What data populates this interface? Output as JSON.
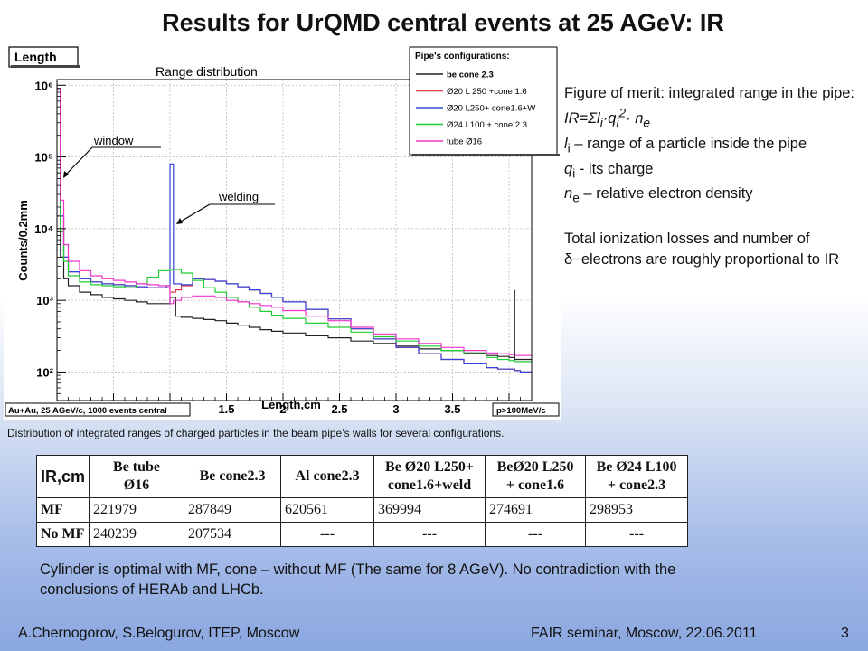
{
  "slide": {
    "title": "Results for UrQMD central events at 25 AGeV: IR",
    "caption": "Distribution of integrated ranges of charged particles in the beam pipe’s walls for several configurations.",
    "conclusion": "Cylinder is optimal with MF, cone – without MF (The same for 8 AGeV). No contradiction with the conclusions of HERAb and LHCb.",
    "footer_left": "A.Chernogorov, S.Belogurov, ITEP, Moscow",
    "footer_mid": "FAIR seminar, Moscow, 22.06.2011",
    "page_number": "3"
  },
  "merit": {
    "line1": "Figure of merit: integrated range in the pipe: ",
    "formula": {
      "a": "IR=Σl",
      "a_sub": "i",
      "b": "·q",
      "b_sub": "i",
      "b_sup": "2",
      "c": "· n",
      "c_sub": "e"
    },
    "line2": {
      "sym": "l",
      "sub": "i",
      "text": " – range of a particle inside the pipe"
    },
    "line3": {
      "sym": "q",
      "sub": "i",
      "text": " - its charge"
    },
    "line4": {
      "sym": "n",
      "sub": "e",
      "text": " – relative electron density"
    },
    "line5a": "Total ionization losses and number of ",
    "delta": "δ−",
    "line5b": "electrons are roughly proportional to IR"
  },
  "table": {
    "corner": "IR,cm",
    "headers": [
      "Be tube\nØ16",
      "Be cone2.3",
      "Al cone2.3",
      "Be Ø20 L250+\ncone1.6+weld",
      "BeØ20 L250\n+ cone1.6",
      "Be Ø24 L100\n+ cone2.3"
    ],
    "rows": [
      {
        "label": "MF",
        "values": [
          "221979",
          "287849",
          "620561",
          "369994",
          "274691",
          "298953"
        ]
      },
      {
        "label": "No MF",
        "values": [
          "240239",
          "207534",
          "---",
          "---",
          "---",
          "---"
        ]
      }
    ]
  },
  "chart_data": {
    "type": "line",
    "title": "Length",
    "subtitle": "Range distribution",
    "xlabel": "Length,cm",
    "ylabel": "Counts/0.2mm",
    "xlim": [
      0,
      4.2
    ],
    "ylim": [
      40,
      1200000
    ],
    "yscale": "log",
    "x_ticks": [
      "0",
      "0.5",
      "1",
      "1.5",
      "2",
      "2.5",
      "3",
      "3.5",
      "4"
    ],
    "y_ticks": [
      "10²",
      "10³",
      "10⁴",
      "10⁵",
      "10⁶"
    ],
    "grid": true,
    "legend_title": "Pipe's configurations:",
    "legend_position": "top-right",
    "info_left": "Au+Au, 25 AGeV/c, 1000 events central",
    "info_right": "p>100MeV/c",
    "annotations": [
      {
        "text": "window",
        "x": 0.02,
        "y": 50000
      },
      {
        "text": "welding",
        "x": 1.0,
        "y": 8000
      }
    ],
    "series": [
      {
        "name": "be cone 2.3",
        "color": "#222222",
        "x": [
          0,
          0.03,
          0.06,
          0.1,
          0.2,
          0.3,
          0.4,
          0.5,
          0.6,
          0.7,
          0.8,
          0.9,
          1.0,
          1.05,
          1.1,
          1.2,
          1.3,
          1.4,
          1.5,
          1.6,
          1.7,
          1.8,
          1.9,
          2.0,
          2.2,
          2.4,
          2.6,
          2.8,
          3.0,
          3.2,
          3.4,
          3.6,
          3.8,
          3.9,
          4.0,
          4.05,
          4.1
        ],
        "y": [
          15000,
          4000,
          2000,
          1600,
          1300,
          1200,
          1100,
          1050,
          1000,
          950,
          900,
          900,
          1100,
          600,
          580,
          560,
          540,
          520,
          480,
          450,
          420,
          390,
          370,
          350,
          320,
          300,
          270,
          250,
          230,
          210,
          200,
          185,
          170,
          165,
          160,
          150,
          150
        ]
      },
      {
        "name": "Ø20 L 250 +cone 1.6",
        "color": "#e6394a",
        "x": [
          0,
          0.03,
          0.06,
          0.1,
          0.2,
          0.3,
          0.4,
          0.5,
          0.6,
          0.7,
          0.8,
          0.9,
          1.0,
          1.05,
          1.1,
          1.2,
          1.3,
          1.4,
          1.5,
          1.6,
          1.7,
          1.8,
          1.9,
          2.0,
          2.2,
          2.4,
          2.6,
          2.8,
          3.0,
          3.2,
          3.4,
          3.6,
          3.8,
          3.9,
          4.0,
          4.05,
          4.1
        ],
        "y": [
          900000,
          15000,
          4000,
          2500,
          2000,
          1800,
          1700,
          1650,
          1600,
          1550,
          1500,
          1500,
          1300,
          1400,
          1600,
          2000,
          1950,
          1850,
          1700,
          1550,
          1400,
          1250,
          1100,
          950,
          750,
          550,
          400,
          290,
          220,
          180,
          150,
          130,
          115,
          110,
          110,
          105,
          100
        ]
      },
      {
        "name": "Ø20 L250+ cone1.6+W",
        "color": "#3346d9",
        "x": [
          0,
          0.03,
          0.06,
          0.1,
          0.2,
          0.3,
          0.4,
          0.5,
          0.6,
          0.7,
          0.8,
          0.9,
          0.97,
          1.0,
          1.03,
          1.1,
          1.2,
          1.3,
          1.4,
          1.5,
          1.6,
          1.7,
          1.8,
          1.9,
          2.0,
          2.2,
          2.4,
          2.6,
          2.8,
          3.0,
          3.2,
          3.4,
          3.6,
          3.8,
          3.9,
          4.0,
          4.05,
          4.1
        ],
        "y": [
          900000,
          15000,
          4000,
          2500,
          2000,
          1800,
          1700,
          1650,
          1600,
          1550,
          1500,
          1500,
          1600,
          80000,
          1700,
          1650,
          2000,
          1950,
          1850,
          1700,
          1550,
          1400,
          1250,
          1100,
          950,
          750,
          550,
          400,
          290,
          220,
          180,
          150,
          130,
          115,
          110,
          110,
          105,
          100
        ]
      },
      {
        "name": "Ø24 L100 + cone 2.3",
        "color": "#22cc33",
        "x": [
          0,
          0.03,
          0.06,
          0.1,
          0.2,
          0.3,
          0.4,
          0.5,
          0.6,
          0.7,
          0.8,
          0.9,
          1.0,
          1.1,
          1.2,
          1.3,
          1.4,
          1.5,
          1.6,
          1.7,
          1.8,
          1.9,
          2.0,
          2.2,
          2.4,
          2.6,
          2.8,
          3.0,
          3.2,
          3.4,
          3.6,
          3.8,
          3.9,
          4.0,
          4.05,
          4.1
        ],
        "y": [
          60000,
          9000,
          3500,
          2200,
          1800,
          1650,
          1600,
          1550,
          1500,
          1700,
          2100,
          2600,
          2700,
          2400,
          1900,
          1500,
          1300,
          1100,
          950,
          800,
          700,
          620,
          560,
          480,
          420,
          360,
          310,
          270,
          230,
          200,
          180,
          160,
          150,
          145,
          140,
          140
        ]
      },
      {
        "name": "tube Ø16",
        "color": "#ee33cc",
        "x": [
          0,
          0.03,
          0.06,
          0.1,
          0.2,
          0.3,
          0.4,
          0.5,
          0.6,
          0.7,
          0.8,
          0.9,
          0.97,
          1.0,
          1.03,
          1.1,
          1.2,
          1.3,
          1.4,
          1.5,
          1.6,
          1.7,
          1.8,
          1.9,
          2.0,
          2.2,
          2.4,
          2.6,
          2.8,
          3.0,
          3.2,
          3.4,
          3.6,
          3.8,
          3.9,
          4.0,
          4.05,
          4.1
        ],
        "y": [
          900000,
          25000,
          6000,
          3500,
          2600,
          2200,
          2000,
          1900,
          1800,
          1700,
          1650,
          1600,
          1600,
          900,
          1000,
          1100,
          1150,
          1150,
          1100,
          1000,
          950,
          900,
          850,
          800,
          720,
          600,
          520,
          420,
          340,
          290,
          250,
          220,
          200,
          185,
          180,
          175,
          170,
          170
        ]
      }
    ]
  }
}
